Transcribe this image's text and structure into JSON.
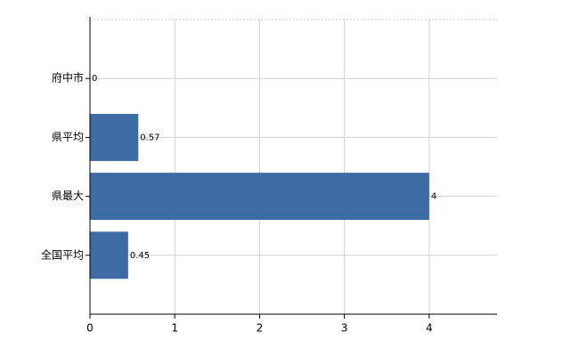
{
  "chart_data": {
    "type": "hbar",
    "categories": [
      "府中市",
      "県平均",
      "県最大",
      "全国平均"
    ],
    "values": [
      0,
      0.57,
      4,
      0.45
    ],
    "color": "#3d6ba3",
    "xlim": [
      0,
      4.8
    ],
    "xticks": [
      0,
      1,
      2,
      3,
      4
    ],
    "grid": true,
    "data_labels": true
  }
}
